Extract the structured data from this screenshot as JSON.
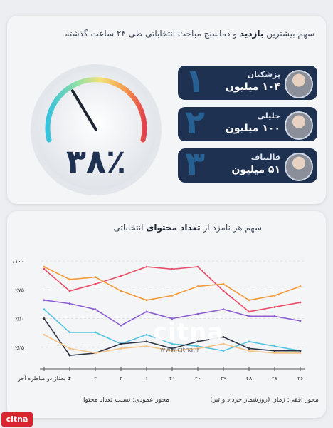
{
  "header": {
    "title_prefix": "سهم بیشترین",
    "title_em": "بازدید",
    "title_suffix": "و دماسنج مباحث انتخاباتی طی ۲۴ ساعت گذشته"
  },
  "gauge": {
    "value_text": "۳۸٪",
    "value": 38
  },
  "ranking": [
    {
      "rank": "۱",
      "name": "پزشکیان",
      "views": "۱۰۴ میلیون"
    },
    {
      "rank": "۲",
      "name": "جلیلی",
      "views": "۱۰۰ میلیون"
    },
    {
      "rank": "۳",
      "name": "قالیباف",
      "views": "۵۱ میلیون"
    }
  ],
  "chart_section": {
    "title_prefix": "سهم هر نامزد از",
    "title_em": "تعداد محتوای",
    "title_suffix": "انتخاباتی"
  },
  "chart_data": {
    "type": "line",
    "x": [
      "۲۶",
      "۲۷",
      "۲۸",
      "۲۹",
      "۳۰",
      "۳۱",
      "۱",
      "۲",
      "۳",
      "۴",
      "۵ بعداز دو مناظره آخر"
    ],
    "y_ticks": [
      "٪۲۵",
      "٪۵۰",
      "٪۷۵",
      "٪۱۰۰"
    ],
    "ylim": [
      10,
      105
    ],
    "xlabel": "محور افقی: زمان (روزشمار خرداد و تیر)",
    "ylabel": "محور عمودی: نسبت تعداد محتوا",
    "series": [
      {
        "color": "#e84f6a",
        "values": [
          64,
          60,
          56,
          74,
          95,
          93,
          95,
          87,
          80,
          74,
          93
        ]
      },
      {
        "color": "#f39a3a",
        "values": [
          78,
          70,
          66,
          80,
          78,
          70,
          66,
          74,
          86,
          84,
          95
        ]
      },
      {
        "color": "#8c5fd1",
        "values": [
          48,
          52,
          52,
          58,
          54,
          50,
          56,
          44,
          58,
          63,
          66
        ]
      },
      {
        "color": "#59c4e2",
        "values": [
          22,
          26,
          30,
          22,
          26,
          28,
          36,
          28,
          38,
          38,
          58
        ]
      },
      {
        "color": "#2d3342",
        "values": [
          22,
          22,
          24,
          34,
          30,
          24,
          30,
          28,
          20,
          18,
          50
        ]
      },
      {
        "color": "#f3c48a",
        "values": [
          20,
          20,
          22,
          28,
          24,
          22,
          26,
          24,
          20,
          24,
          36
        ]
      }
    ]
  },
  "watermark": {
    "logo": "citna",
    "url": "www.citna.ir"
  },
  "brand": "citna"
}
